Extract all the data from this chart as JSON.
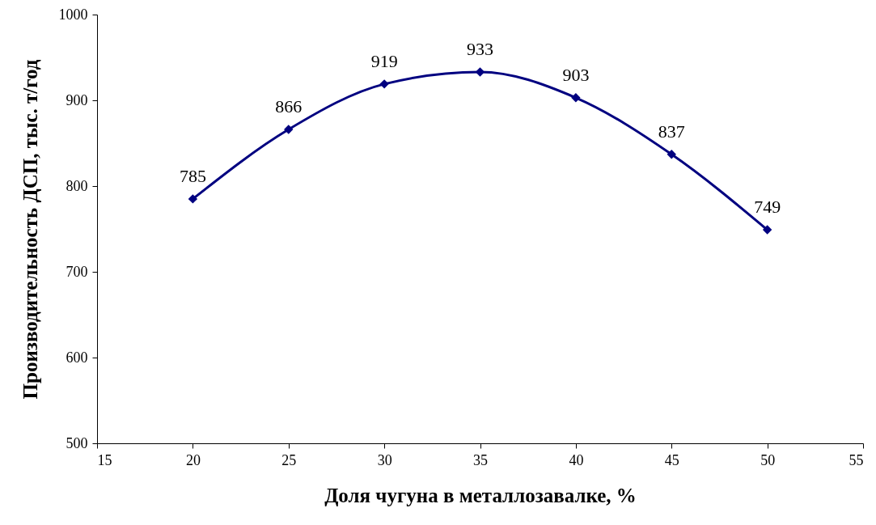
{
  "chart_data": {
    "type": "line",
    "xlabel": "Доля чугуна в металлозавалке, %",
    "ylabel": "Производительность ДСП, тыс. т/год",
    "x": [
      20,
      25,
      30,
      35,
      40,
      45,
      50
    ],
    "values": [
      785,
      866,
      919,
      933,
      903,
      837,
      749
    ],
    "color": "#000080",
    "marker": "diamond",
    "data_labels": true,
    "xlim": [
      15,
      55
    ],
    "xticks": [
      15,
      20,
      25,
      30,
      35,
      40,
      45,
      50,
      55
    ],
    "ylim": [
      500,
      1000
    ],
    "yticks": [
      500,
      600,
      700,
      800,
      900,
      1000
    ]
  }
}
